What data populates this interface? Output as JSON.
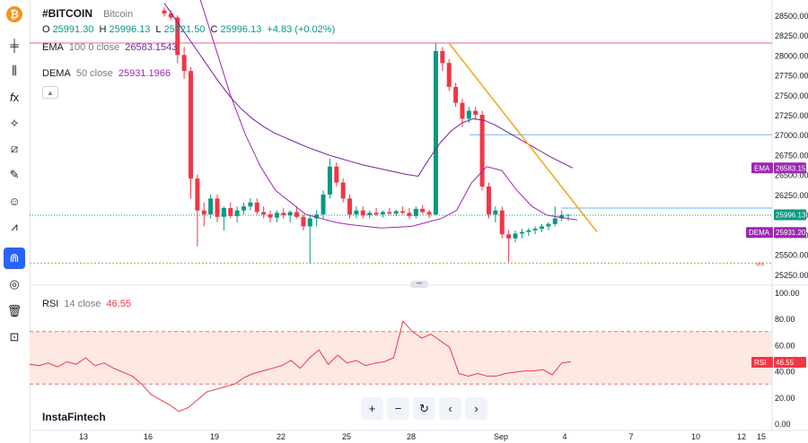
{
  "symbol": {
    "ticker": "#BITCOIN",
    "name": "Bitcoin"
  },
  "ohlc": {
    "o_label": "O",
    "o": "25991.30",
    "h_label": "H",
    "h": "25996.13",
    "l_label": "L",
    "l": "25921.50",
    "c_label": "C",
    "c": "25996.13",
    "change": "+4.83 (+0.02%)"
  },
  "ema": {
    "name": "EMA",
    "params": "100 0 close",
    "value": "26583.1543",
    "tag": "EMA",
    "tag_value": "26583.15",
    "color": "#7b1fa2"
  },
  "dema": {
    "name": "DEMA",
    "params": "50 close",
    "value": "25931.1966",
    "tag": "DEMA",
    "tag_value": "25931.20",
    "color": "#9c27b0"
  },
  "rsi": {
    "name": "RSI",
    "params": "14 close",
    "value": "46.55",
    "tag": "RSI",
    "tag_value": "46.55",
    "color": "#f23645"
  },
  "price_tag": {
    "value": "25996.13",
    "color": "#089981"
  },
  "min_label": "MIN",
  "watermark": "InstaFintech",
  "colors": {
    "up": "#089981",
    "down": "#f23645",
    "trendline": "#f7a21b",
    "hline_pink": "#f06292",
    "hline_blue": "#64b5f6",
    "rsi_band": "#fde9e2"
  },
  "toolbar": {
    "icons": [
      "bitcoin-logo",
      "crosshair-icon",
      "candles-icon",
      "fx-icon",
      "nodes-icon",
      "lines-icon",
      "brush-icon",
      "emoji-icon",
      "measure-icon",
      "magnet-icon",
      "eye-off-icon",
      "trash-icon",
      "lock-icon"
    ]
  },
  "nav": {
    "icons": [
      "zoom-in-icon",
      "zoom-out-icon",
      "reset-icon",
      "scroll-left-icon",
      "scroll-right-icon"
    ],
    "glyphs": [
      "+",
      "−",
      "↻",
      "‹",
      "›"
    ]
  },
  "chart_data": {
    "type": "candlestick",
    "title": "#BITCOIN",
    "price_axis": {
      "ticks": [
        28500,
        28250,
        28000,
        27750,
        27500,
        27250,
        27000,
        26750,
        26500,
        26250,
        26000,
        25750,
        25500,
        25250
      ],
      "range": [
        25180,
        28600
      ]
    },
    "x_axis": {
      "ticks": [
        "13",
        "16",
        "19",
        "22",
        "25",
        "28",
        "Sep",
        "4",
        "7",
        "10",
        "12",
        "15"
      ]
    },
    "candles": [
      [
        28560,
        28600,
        28480,
        28520
      ],
      [
        28520,
        28560,
        28440,
        28470
      ],
      [
        28470,
        28500,
        27900,
        28000
      ],
      [
        28000,
        28100,
        27700,
        27800
      ],
      [
        27800,
        27850,
        26200,
        26450
      ],
      [
        26450,
        26500,
        25600,
        26050
      ],
      [
        26050,
        26150,
        25850,
        26000
      ],
      [
        26000,
        26250,
        25950,
        26200
      ],
      [
        26200,
        26250,
        25900,
        25970
      ],
      [
        25970,
        26100,
        25800,
        26080
      ],
      [
        26080,
        26150,
        25950,
        25980
      ],
      [
        25980,
        26100,
        25900,
        26050
      ],
      [
        26050,
        26150,
        26000,
        26100
      ],
      [
        26100,
        26200,
        26050,
        26150
      ],
      [
        26150,
        26200,
        26000,
        26030
      ],
      [
        26030,
        26100,
        25950,
        26000
      ],
      [
        26000,
        26050,
        25900,
        25960
      ],
      [
        25960,
        26050,
        25900,
        26020
      ],
      [
        26020,
        26080,
        25950,
        25990
      ],
      [
        25990,
        26050,
        25900,
        26030
      ],
      [
        26030,
        26100,
        25950,
        25970
      ],
      [
        25970,
        26000,
        25800,
        25850
      ],
      [
        25850,
        26000,
        25380,
        25950
      ],
      [
        25950,
        26050,
        25850,
        26000
      ],
      [
        26000,
        26300,
        25950,
        26250
      ],
      [
        26250,
        26700,
        26200,
        26600
      ],
      [
        26600,
        26650,
        26350,
        26400
      ],
      [
        26400,
        26450,
        26150,
        26200
      ],
      [
        26200,
        26250,
        25950,
        26000
      ],
      [
        26000,
        26100,
        25950,
        26050
      ],
      [
        26050,
        26100,
        25950,
        25990
      ],
      [
        25990,
        26050,
        25950,
        26020
      ],
      [
        26020,
        26080,
        25980,
        26000
      ],
      [
        26000,
        26050,
        25960,
        26030
      ],
      [
        26030,
        26080,
        25990,
        26010
      ],
      [
        26010,
        26060,
        25980,
        26040
      ],
      [
        26040,
        26100,
        26000,
        26020
      ],
      [
        26020,
        26080,
        25950,
        25980
      ],
      [
        25980,
        26100,
        25950,
        26070
      ],
      [
        26070,
        26120,
        26000,
        26030
      ],
      [
        26030,
        26060,
        25950,
        26000
      ],
      [
        26000,
        28150,
        25990,
        28050
      ],
      [
        28050,
        28100,
        27800,
        27900
      ],
      [
        27900,
        27950,
        27550,
        27600
      ],
      [
        27600,
        27650,
        27350,
        27400
      ],
      [
        27400,
        27450,
        27100,
        27200
      ],
      [
        27200,
        27350,
        27150,
        27300
      ],
      [
        27300,
        27350,
        27200,
        27250
      ],
      [
        27250,
        27300,
        26300,
        26350
      ],
      [
        26350,
        26400,
        25950,
        26000
      ],
      [
        26000,
        26100,
        25900,
        26050
      ],
      [
        26050,
        26100,
        25700,
        25750
      ],
      [
        25750,
        25800,
        25400,
        25700
      ],
      [
        25700,
        25800,
        25650,
        25760
      ],
      [
        25760,
        25820,
        25700,
        25780
      ],
      [
        25780,
        25830,
        25730,
        25800
      ],
      [
        25800,
        25850,
        25750,
        25820
      ],
      [
        25820,
        25880,
        25780,
        25850
      ],
      [
        25850,
        25900,
        25800,
        25880
      ],
      [
        25880,
        26100,
        25850,
        25950
      ],
      [
        25950,
        26050,
        25920,
        25990
      ],
      [
        25990,
        26000,
        25920,
        25996
      ]
    ],
    "ema_series": [
      28650,
      28450,
      28250,
      28050,
      27850,
      27650,
      27470,
      27320,
      27200,
      27100,
      27020,
      26960,
      26900,
      26840,
      26790,
      26740,
      26700,
      26660,
      26620,
      26590,
      26560,
      26530,
      26500,
      26480,
      26700,
      26900,
      27050,
      27150,
      27200,
      27180,
      27120,
      27040,
      26960,
      26880,
      26800,
      26720,
      26650,
      26583
    ],
    "dema_series": [
      28700,
      28100,
      27500,
      27000,
      26600,
      26300,
      26150,
      26000,
      25950,
      25900,
      25870,
      25850,
      25830,
      25840,
      25850,
      25900,
      25950,
      26050,
      26400,
      26600,
      26550,
      26300,
      26100,
      25990,
      25960,
      25931
    ],
    "rsi_series": [
      45,
      44,
      46,
      43,
      47,
      45,
      50,
      44,
      46,
      42,
      39,
      36,
      30,
      22,
      18,
      14,
      9,
      12,
      18,
      24,
      26,
      28,
      30,
      35,
      38,
      40,
      42,
      44,
      48,
      42,
      50,
      56,
      45,
      52,
      46,
      48,
      44,
      46,
      47,
      50,
      78,
      70,
      65,
      68,
      63,
      58,
      38,
      36,
      38,
      36,
      36,
      38,
      39,
      40,
      40,
      41,
      37,
      46,
      47
    ],
    "rsi_axis": {
      "ticks": [
        100,
        80,
        60,
        40,
        20,
        0
      ],
      "overbought": 70,
      "oversold": 30
    },
    "h_lines": [
      28150,
      27000,
      26080
    ],
    "min_value": 25390
  }
}
